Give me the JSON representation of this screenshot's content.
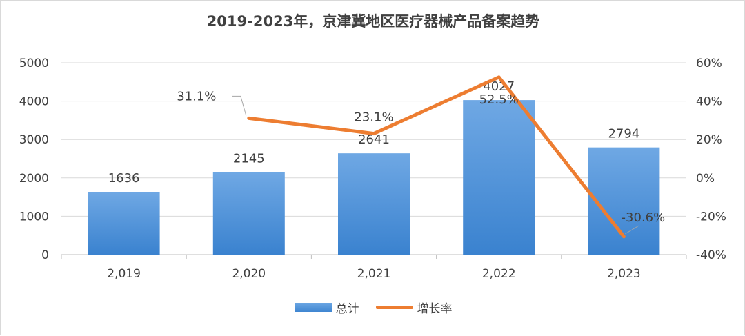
{
  "title": "2019-2023年，京津冀地区医疗器械产品备案趋势",
  "legend": {
    "bar_label": "总计",
    "line_label": "增长率"
  },
  "colors": {
    "bar": "#5b9bd5",
    "line": "#ed7d31",
    "text": "#404040",
    "grid": "#d9d9d9"
  },
  "chart_data": {
    "type": "bar",
    "title": "2019-2023年，京津冀地区医疗器械产品备案趋势",
    "categories": [
      "2,019",
      "2,020",
      "2,021",
      "2,022",
      "2,023"
    ],
    "series": [
      {
        "name": "总计",
        "type": "bar",
        "axis": "left",
        "values": [
          1636,
          2145,
          2641,
          4027,
          2794
        ],
        "labels": [
          "1636",
          "2145",
          "2641",
          "4027",
          "2794"
        ]
      },
      {
        "name": "增长率",
        "type": "line",
        "axis": "right",
        "values": [
          null,
          31.1,
          23.1,
          52.5,
          -30.6
        ],
        "labels": [
          "",
          "31.1%",
          "23.1%",
          "52.5%",
          "-30.6%"
        ]
      }
    ],
    "y_left": {
      "min": 0,
      "max": 5000,
      "ticks": [
        "0",
        "1000",
        "2000",
        "3000",
        "4000",
        "5000"
      ]
    },
    "y_right": {
      "min": -40,
      "max": 60,
      "ticks": [
        "-40%",
        "-20%",
        "0%",
        "20%",
        "40%",
        "60%"
      ]
    },
    "grid": true,
    "legend_position": "bottom"
  }
}
